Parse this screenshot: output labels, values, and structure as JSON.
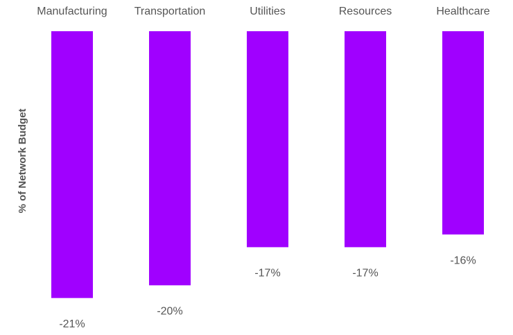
{
  "chart_data": {
    "type": "bar",
    "y_label": "% of Network Budget",
    "categories": [
      "Manufacturing",
      "Transportation",
      "Utilities",
      "Resources",
      "Healthcare"
    ],
    "values": [
      -21,
      -20,
      -17,
      -17,
      -16
    ],
    "value_labels": [
      "-21%",
      "-20%",
      "-17%",
      "-17%",
      "-16%"
    ],
    "color": "#a000ff",
    "ylim": [
      -22,
      0
    ]
  }
}
